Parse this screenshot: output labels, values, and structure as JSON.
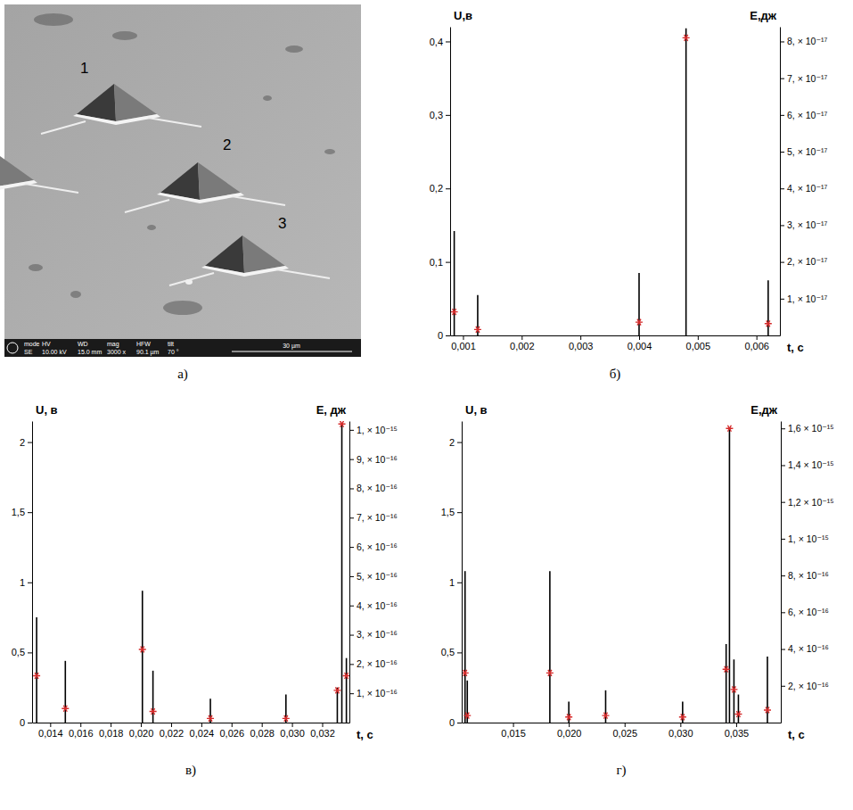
{
  "chart_data": [
    {
      "type": "stem",
      "panel_label": "б)",
      "x_label": "t, с",
      "y_label": "U,в",
      "y2_label": "E,дж",
      "x": [
        0.00085,
        0.00125,
        0.004,
        0.0048,
        0.0062
      ],
      "series": [
        {
          "type": "stem",
          "color": "#000000",
          "values": [
            0.142,
            0.055,
            0.085,
            0.418,
            0.075
          ]
        },
        {
          "type": "scatter",
          "axis": "y2",
          "color": "#d42a2a",
          "marker": "asterisk",
          "values": [
            6.4e-18,
            1.6e-18,
            3.6e-18,
            8.1e-17,
            3.2e-18
          ]
        }
      ],
      "xlim": [
        0.00078,
        0.0064
      ],
      "xticks": [
        {
          "value": 0.001,
          "label": "0,001"
        },
        {
          "value": 0.002,
          "label": "0,002"
        },
        {
          "value": 0.003,
          "label": "0,003"
        },
        {
          "value": 0.004,
          "label": "0,004"
        },
        {
          "value": 0.005,
          "label": "0,005"
        },
        {
          "value": 0.006,
          "label": "0,006"
        }
      ],
      "ylim": [
        0,
        0.42
      ],
      "yticks": [
        0,
        {
          "value": 0.1,
          "label": "0,1"
        },
        {
          "value": 0.2,
          "label": "0,2"
        },
        {
          "value": 0.3,
          "label": "0,3"
        },
        {
          "value": 0.4,
          "label": "0,4"
        }
      ],
      "y2lim": [
        0,
        8.4e-17
      ],
      "y2ticks": [
        {
          "value": 1e-17,
          "label": "1, × 10⁻¹⁷"
        },
        {
          "value": 2e-17,
          "label": "2, × 10⁻¹⁷"
        },
        {
          "value": 3e-17,
          "label": "3, × 10⁻¹⁷"
        },
        {
          "value": 4e-17,
          "label": "4, × 10⁻¹⁷"
        },
        {
          "value": 5e-17,
          "label": "5, × 10⁻¹⁷"
        },
        {
          "value": 6e-17,
          "label": "6, × 10⁻¹⁷"
        },
        {
          "value": 7e-17,
          "label": "7, × 10⁻¹⁷"
        },
        {
          "value": 8e-17,
          "label": "8, × 10⁻¹⁷"
        }
      ]
    },
    {
      "type": "stem",
      "panel_label": "в)",
      "x_label": "t, с",
      "y_label": "U, в",
      "y2_label": "E, дж",
      "x": [
        0.0131,
        0.015,
        0.0201,
        0.0208,
        0.0246,
        0.0296,
        0.033,
        0.0333,
        0.0336
      ],
      "series": [
        {
          "type": "stem",
          "color": "#000000",
          "values": [
            0.75,
            0.44,
            0.94,
            0.37,
            0.17,
            0.2,
            0.25,
            2.13,
            0.46
          ]
        },
        {
          "type": "scatter",
          "axis": "y2",
          "color": "#d42a2a",
          "marker": "asterisk",
          "values": [
            1.6e-16,
            4.8e-17,
            2.5e-16,
            3.8e-17,
            1.4e-17,
            1.4e-17,
            1.1e-16,
            1.02e-15,
            1.6e-16
          ]
        }
      ],
      "xlim": [
        0.0128,
        0.0338
      ],
      "xticks": [
        {
          "value": 0.014,
          "label": "0,014"
        },
        {
          "value": 0.016,
          "label": "0,016"
        },
        {
          "value": 0.018,
          "label": "0,018"
        },
        {
          "value": 0.02,
          "label": "0,020"
        },
        {
          "value": 0.022,
          "label": "0,022"
        },
        {
          "value": 0.024,
          "label": "0,024"
        },
        {
          "value": 0.026,
          "label": "0,026"
        },
        {
          "value": 0.028,
          "label": "0,028"
        },
        {
          "value": 0.03,
          "label": "0,030"
        },
        {
          "value": 0.032,
          "label": "0,032"
        }
      ],
      "ylim": [
        0,
        2.15
      ],
      "yticks": [
        0,
        {
          "value": 0.5,
          "label": "0,5"
        },
        1,
        {
          "value": 1.5,
          "label": "1,5"
        },
        2
      ],
      "y2lim": [
        0,
        1.03e-15
      ],
      "y2ticks": [
        {
          "value": 1e-16,
          "label": "1, × 10⁻¹⁶"
        },
        {
          "value": 2e-16,
          "label": "2, × 10⁻¹⁶"
        },
        {
          "value": 3e-16,
          "label": "3, × 10⁻¹⁶"
        },
        {
          "value": 4e-16,
          "label": "4, × 10⁻¹⁶"
        },
        {
          "value": 5e-16,
          "label": "5, × 10⁻¹⁶"
        },
        {
          "value": 6e-16,
          "label": "6, × 10⁻¹⁶"
        },
        {
          "value": 7e-16,
          "label": "7, × 10⁻¹⁶"
        },
        {
          "value": 8e-16,
          "label": "8, × 10⁻¹⁶"
        },
        {
          "value": 9e-16,
          "label": "9, × 10⁻¹⁶"
        },
        {
          "value": 1e-15,
          "label": "1, × 10⁻¹⁵"
        }
      ]
    },
    {
      "type": "stem",
      "panel_label": "г)",
      "x_label": "t, с",
      "y_label": "U, в",
      "y2_label": "E,дж",
      "x": [
        0.0107,
        0.0109,
        0.0183,
        0.02,
        0.0233,
        0.0302,
        0.0341,
        0.0344,
        0.0348,
        0.0352,
        0.0378
      ],
      "series": [
        {
          "type": "stem",
          "color": "#000000",
          "values": [
            1.08,
            0.3,
            1.08,
            0.15,
            0.23,
            0.15,
            0.56,
            2.1,
            0.45,
            0.2,
            0.47
          ]
        },
        {
          "type": "scatter",
          "axis": "y2",
          "color": "#d42a2a",
          "marker": "asterisk",
          "values": [
            2.7e-16,
            3.8e-17,
            2.7e-16,
            3e-17,
            3.8e-17,
            3e-17,
            2.9e-16,
            1.6e-15,
            1.8e-16,
            4.6e-17,
            6.8e-17
          ]
        }
      ],
      "xlim": [
        0.0104,
        0.039
      ],
      "xticks": [
        {
          "value": 0.015,
          "label": "0,015"
        },
        {
          "value": 0.02,
          "label": "0,020"
        },
        {
          "value": 0.025,
          "label": "0,025"
        },
        {
          "value": 0.03,
          "label": "0,030"
        },
        {
          "value": 0.035,
          "label": "0,035"
        }
      ],
      "ylim": [
        0,
        2.15
      ],
      "yticks": [
        0,
        {
          "value": 0.5,
          "label": "0,5"
        },
        1,
        {
          "value": 1.5,
          "label": "1,5"
        },
        2
      ],
      "y2lim": [
        0,
        1.64e-15
      ],
      "y2ticks": [
        {
          "value": 2e-16,
          "label": "2, × 10⁻¹⁶"
        },
        {
          "value": 4e-16,
          "label": "4, × 10⁻¹⁶"
        },
        {
          "value": 6e-16,
          "label": "6, × 10⁻¹⁶"
        },
        {
          "value": 8e-16,
          "label": "8, × 10⁻¹⁶"
        },
        {
          "value": 1e-15,
          "label": "1, × 10⁻¹⁵"
        },
        {
          "value": 1.2e-15,
          "label": "1,2 × 10⁻¹⁵"
        },
        {
          "value": 1.4e-15,
          "label": "1,4 × 10⁻¹⁵"
        },
        {
          "value": 1.6e-15,
          "label": "1,6 × 10⁻¹⁵"
        }
      ]
    }
  ],
  "image_panel": {
    "panel_label": "а)",
    "markers": [
      "1",
      "2",
      "3"
    ],
    "info_bar": [
      {
        "key": "mode",
        "value": "SE"
      },
      {
        "key": "HV",
        "value": "10.00 kV"
      },
      {
        "key": "WD",
        "value": "15.0 mm"
      },
      {
        "key": "mag",
        "value": "3000 x"
      },
      {
        "key": "HFW",
        "value": "90.1 µm"
      },
      {
        "key": "tilt",
        "value": "70 °"
      }
    ],
    "scale_bar": "30 µm"
  }
}
